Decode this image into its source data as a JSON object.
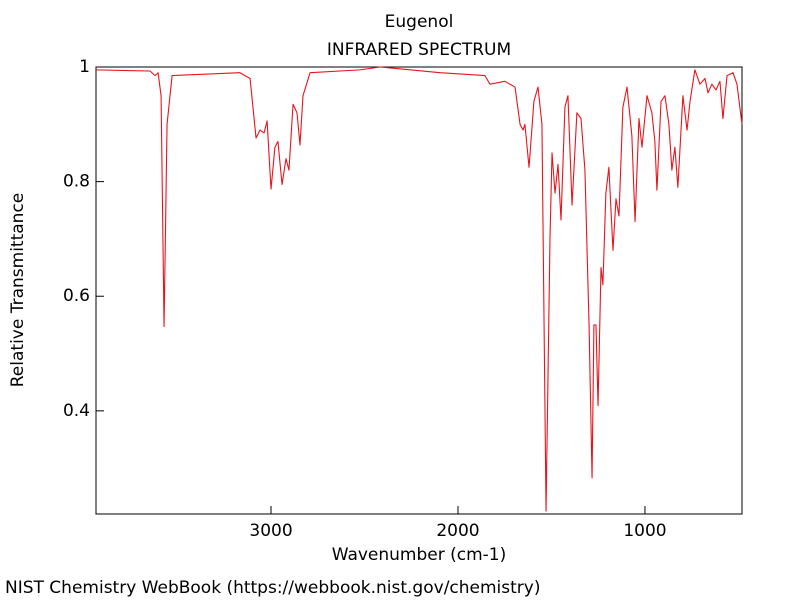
{
  "chart_data": {
    "type": "line",
    "title": "Eugenol",
    "subtitle": "INFRARED SPECTRUM",
    "x_label": "Wavenumber (cm-1)",
    "y_label": "Relative Transmittance",
    "source": "NIST Chemistry WebBook (https://webbook.nist.gov/chemistry)",
    "xlim": [
      3936,
      481
    ],
    "ylim": [
      0.22,
      1
    ],
    "xticks": [
      3000,
      2000,
      1000
    ],
    "yticks": [
      1,
      0.8,
      0.6,
      0.4
    ],
    "grid": false,
    "x": [
      3936,
      3647,
      3620,
      3604,
      3588,
      3572,
      3556,
      3529,
      3166,
      3112,
      3080,
      3059,
      3037,
      3021,
      3000,
      2979,
      2963,
      2941,
      2920,
      2904,
      2882,
      2861,
      2845,
      2829,
      2791,
      2524,
      2417,
      2096,
      1856,
      1829,
      1749,
      1695,
      1668,
      1652,
      1642,
      1620,
      1594,
      1572,
      1551,
      1529,
      1508,
      1497,
      1481,
      1465,
      1449,
      1428,
      1412,
      1390,
      1364,
      1342,
      1321,
      1299,
      1283,
      1273,
      1262,
      1251,
      1235,
      1225,
      1209,
      1193,
      1171,
      1155,
      1139,
      1118,
      1096,
      1070,
      1053,
      1032,
      1016,
      989,
      963,
      947,
      936,
      914,
      893,
      872,
      856,
      840,
      824,
      797,
      775,
      759,
      733,
      706,
      679,
      663,
      642,
      620,
      599,
      583,
      561,
      529,
      508,
      481
    ],
    "series": [
      {
        "name": "Eugenol",
        "color": "#e8141c",
        "values": [
          0.995,
          0.993,
          0.985,
          0.99,
          0.95,
          0.547,
          0.9,
          0.985,
          0.99,
          0.98,
          0.876,
          0.89,
          0.885,
          0.906,
          0.787,
          0.86,
          0.87,
          0.795,
          0.84,
          0.82,
          0.935,
          0.92,
          0.864,
          0.95,
          0.99,
          0.995,
          1.0,
          0.99,
          0.985,
          0.97,
          0.975,
          0.965,
          0.9,
          0.89,
          0.9,
          0.825,
          0.94,
          0.965,
          0.9,
          0.225,
          0.7,
          0.85,
          0.78,
          0.83,
          0.733,
          0.93,
          0.95,
          0.759,
          0.92,
          0.91,
          0.82,
          0.55,
          0.283,
          0.55,
          0.55,
          0.409,
          0.65,
          0.62,
          0.78,
          0.825,
          0.68,
          0.77,
          0.74,
          0.93,
          0.965,
          0.88,
          0.73,
          0.91,
          0.86,
          0.95,
          0.92,
          0.87,
          0.785,
          0.94,
          0.95,
          0.9,
          0.82,
          0.86,
          0.79,
          0.95,
          0.89,
          0.94,
          0.995,
          0.97,
          0.98,
          0.955,
          0.97,
          0.96,
          0.975,
          0.91,
          0.985,
          0.99,
          0.97,
          0.9
        ]
      }
    ]
  }
}
